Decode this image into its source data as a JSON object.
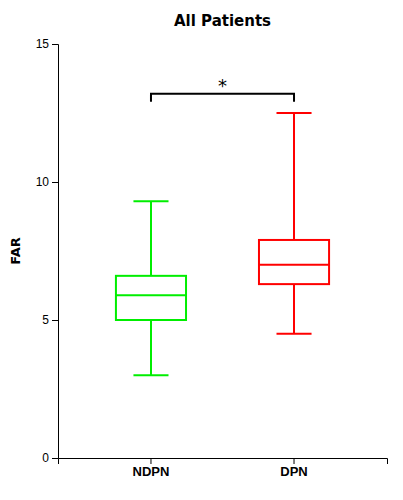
{
  "chart_data": {
    "type": "box",
    "title": "All Patients",
    "ylabel": "FAR",
    "categories": [
      "NDPN",
      "DPN"
    ],
    "boxes": [
      {
        "whisker_low": 3.0,
        "q1": 5.0,
        "median": 5.9,
        "q3": 6.6,
        "whisker_high": 9.3
      },
      {
        "whisker_low": 4.5,
        "q1": 6.3,
        "median": 7.0,
        "q3": 7.9,
        "whisker_high": 12.5
      }
    ],
    "colors": [
      "#00EE00",
      "#FF0000"
    ],
    "ylim": [
      0,
      15
    ],
    "yticks": [
      0,
      5,
      10,
      15
    ],
    "grid": false,
    "annotations": [
      {
        "text": "*",
        "y": 13.2,
        "from": "NDPN",
        "to": "DPN"
      }
    ]
  }
}
